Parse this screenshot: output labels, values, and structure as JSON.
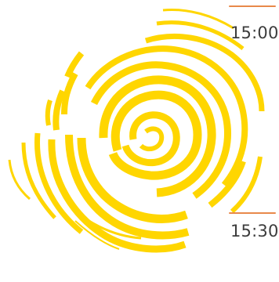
{
  "logo": {
    "icon": "yellow-swirl-sun-logo",
    "color": "#FFD600"
  },
  "time_slots": [
    {
      "time": "15:00"
    },
    {
      "time": "15:30"
    }
  ],
  "colors": {
    "accent_line": "#E8894A",
    "time_text": "#3C3C3C",
    "background": "#FFFFFF"
  }
}
